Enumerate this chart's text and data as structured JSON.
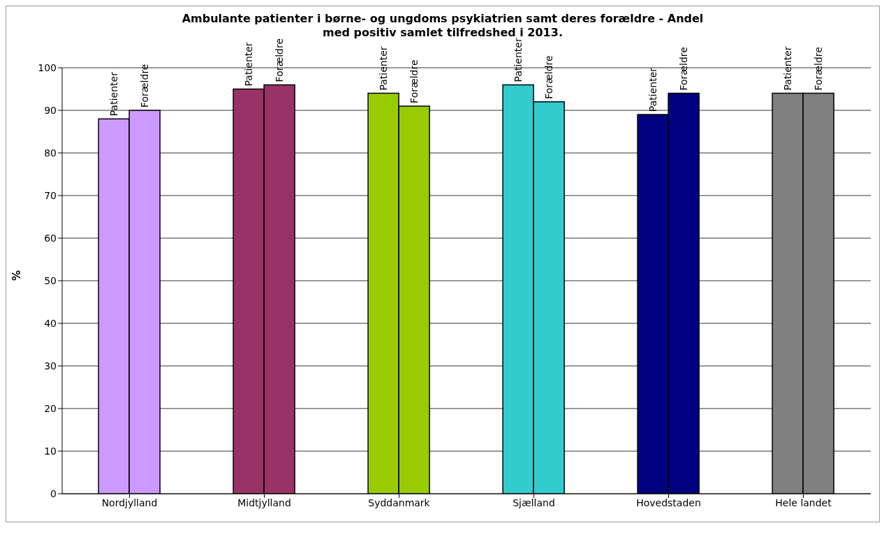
{
  "chart_data": {
    "type": "bar",
    "title": "Ambulante patienter i børne- og ungdoms psykiatrien samt deres forældre - Andel med positiv samlet tilfredshed i 2013.",
    "ylabel": "%",
    "categories": [
      "Nordjylland",
      "Midtjylland",
      "Syddanmark",
      "Sjælland",
      "Hovedstaden",
      "Hele landet"
    ],
    "series": [
      {
        "name": "Patienter",
        "values": [
          88,
          95,
          94,
          96,
          89,
          94
        ],
        "colors": [
          "#cc99ff",
          "#993366",
          "#99cc00",
          "#33cccc",
          "#000080",
          "#808080"
        ]
      },
      {
        "name": "Forældre",
        "values": [
          90,
          96,
          91,
          92,
          94,
          94
        ],
        "colors": [
          "#cc99ff",
          "#993366",
          "#99cc00",
          "#33cccc",
          "#000080",
          "#808080"
        ]
      }
    ],
    "ylim": [
      0,
      100
    ],
    "yticks": [
      0,
      10,
      20,
      30,
      40,
      50,
      60,
      70,
      80,
      90,
      100
    ],
    "grid": "y",
    "legend": false
  }
}
